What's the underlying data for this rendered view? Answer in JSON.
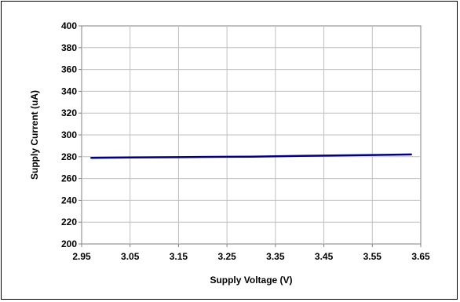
{
  "chart_data": {
    "type": "line",
    "title": "",
    "xlabel": "Supply Voltage (V)",
    "ylabel": "Supply Current (uA)",
    "xlim": [
      2.95,
      3.65
    ],
    "ylim": [
      200,
      400
    ],
    "x_ticks": [
      "2.95",
      "3.05",
      "3.15",
      "3.25",
      "3.35",
      "3.45",
      "3.55",
      "3.65"
    ],
    "y_ticks": [
      "400",
      "380",
      "360",
      "340",
      "320",
      "300",
      "280",
      "260",
      "240",
      "220",
      "200"
    ],
    "grid": true,
    "legend": "none",
    "series": [
      {
        "color": "#000080",
        "x": [
          2.97,
          3.05,
          3.15,
          3.25,
          3.3,
          3.35,
          3.45,
          3.55,
          3.63
        ],
        "y": [
          279.0,
          279.3,
          279.6,
          279.9,
          280.1,
          280.4,
          281.0,
          281.6,
          282.1
        ]
      }
    ]
  }
}
